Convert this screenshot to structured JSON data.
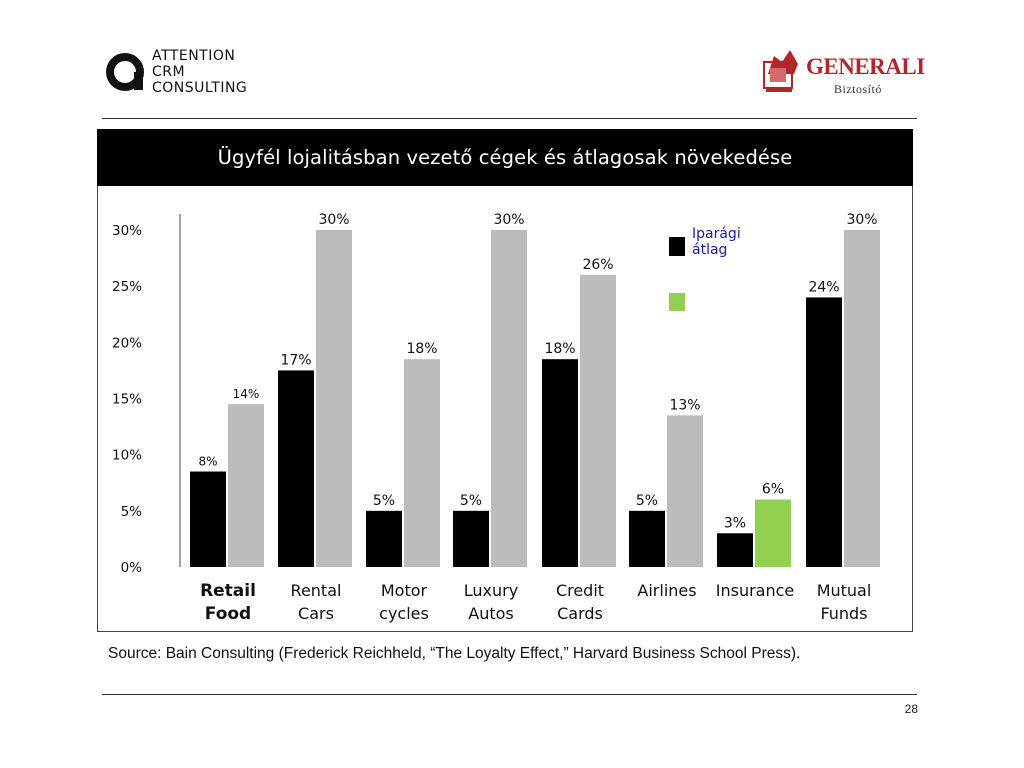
{
  "header": {
    "left_logo": {
      "lines": [
        "ATTENTION",
        "CRM",
        "CONSULTING"
      ]
    },
    "right_logo": {
      "brand": "GENERALI",
      "sub": "Biztosító"
    }
  },
  "colors": {
    "industry_average": "#000000",
    "leader": "#bcbcbc",
    "highlight_leader": "#92d050",
    "title_bar": "#000000",
    "brand_red": "#b1262b"
  },
  "chart_data": {
    "type": "bar",
    "title": "Ügyfél lojalitásban vezető cégek és átlagosak növekedése",
    "categories": [
      [
        "Retail",
        "Food"
      ],
      [
        "Rental",
        "Cars"
      ],
      [
        "Motor",
        "cycles"
      ],
      [
        "Luxury",
        "Autos"
      ],
      [
        "Credit",
        "Cards"
      ],
      [
        "Airlines"
      ],
      [
        "Insurance"
      ],
      [
        "Mutual",
        "Funds"
      ]
    ],
    "series": [
      {
        "name": "Iparági átlag",
        "color": "#000000",
        "values": [
          8.5,
          17.5,
          5,
          5,
          18.5,
          5,
          3,
          24
        ],
        "labels": [
          "8%",
          "17%",
          "5%",
          "5%",
          "18%",
          "5%",
          "3%",
          "24%"
        ]
      },
      {
        "color": "#bcbcbc",
        "highlight_color": "#92d050",
        "highlight_index": 6,
        "values": [
          14.5,
          30,
          18.5,
          30,
          26,
          13.5,
          6,
          30
        ],
        "labels": [
          "14%",
          "30%",
          "18%",
          "30%",
          "26%",
          "13%",
          "6%",
          "30%"
        ]
      }
    ],
    "yticks": [
      "0%",
      "5%",
      "10%",
      "15%",
      "20%",
      "25%",
      "30%"
    ],
    "ylim": [
      0,
      30
    ],
    "grid": false,
    "legend": {
      "position": "top-right",
      "items": [
        {
          "label_lines": [
            "Iparági",
            "átlag"
          ],
          "color": "#000000"
        },
        {
          "label_lines": [],
          "color": "#92d050"
        }
      ]
    }
  },
  "source_text": "Source: Bain Consulting (Frederick Reichheld, “The Loyalty Effect,” Harvard Business School Press).",
  "footer": {
    "page_number": "28"
  }
}
